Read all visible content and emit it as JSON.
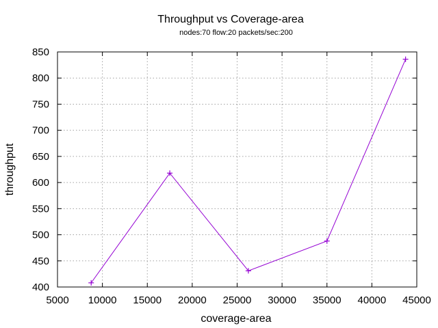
{
  "chart_data": {
    "type": "line",
    "title": "Throughput vs Coverage-area",
    "subtitle": "nodes:70  flow:20  packets/sec:200",
    "xlabel": "coverage-area",
    "ylabel": "throughput",
    "xlim": [
      5000,
      45000
    ],
    "ylim": [
      400,
      850
    ],
    "xticks": [
      5000,
      10000,
      15000,
      20000,
      25000,
      30000,
      35000,
      40000,
      45000
    ],
    "yticks": [
      400,
      450,
      500,
      550,
      600,
      650,
      700,
      750,
      800,
      850
    ],
    "grid": true,
    "series": [
      {
        "color": "#9400d3",
        "marker": "plus",
        "x": [
          8750,
          17500,
          26250,
          35000,
          43750
        ],
        "y": [
          408,
          618,
          431,
          488,
          836
        ]
      }
    ]
  }
}
